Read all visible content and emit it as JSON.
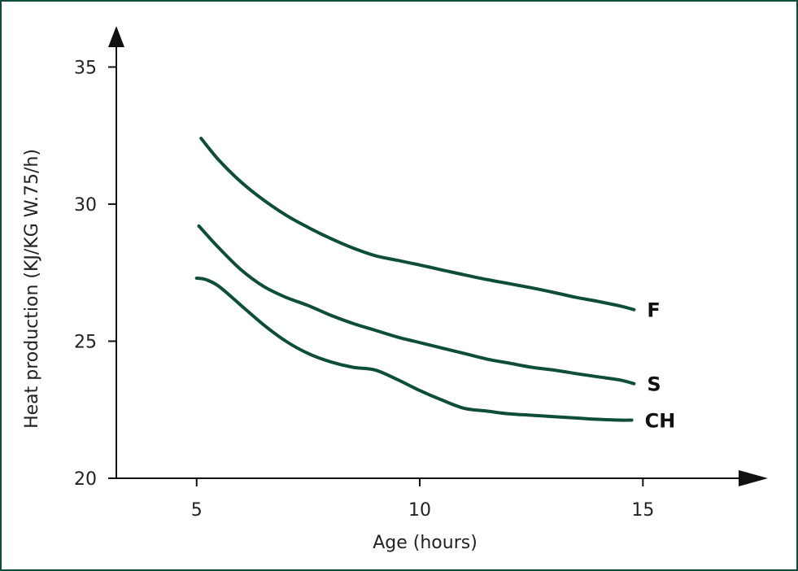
{
  "chart_data": {
    "type": "line",
    "title": "",
    "xlabel": "Age (hours)",
    "ylabel": "Heat production (KJ/KG W.75/h)",
    "xlim": [
      3.2,
      17.4
    ],
    "ylim": [
      20,
      36.2
    ],
    "x_ticks": [
      5,
      10,
      15
    ],
    "y_ticks": [
      20,
      25,
      30,
      35
    ],
    "x_tick_labels": [
      "5",
      "10",
      "15"
    ],
    "y_tick_labels": [
      "20",
      "25",
      "30",
      "35"
    ],
    "grid": false,
    "legend": "inline labels at line ends",
    "line_color": "#0e4d3c",
    "series": [
      {
        "name": "F",
        "x": [
          5.1,
          5.5,
          6.0,
          6.5,
          7.0,
          7.5,
          8.0,
          8.5,
          9.0,
          9.5,
          10.0,
          10.5,
          11.0,
          11.5,
          12.0,
          12.5,
          13.0,
          13.5,
          14.0,
          14.5,
          14.8
        ],
        "y": [
          32.4,
          31.6,
          30.8,
          30.15,
          29.6,
          29.15,
          28.75,
          28.4,
          28.12,
          27.95,
          27.78,
          27.6,
          27.42,
          27.25,
          27.1,
          26.95,
          26.78,
          26.6,
          26.45,
          26.28,
          26.15
        ]
      },
      {
        "name": "S",
        "x": [
          5.05,
          5.5,
          6.0,
          6.5,
          7.0,
          7.5,
          8.0,
          8.5,
          9.0,
          9.5,
          10.0,
          10.5,
          11.0,
          11.5,
          12.0,
          12.5,
          13.0,
          13.5,
          14.0,
          14.5,
          14.8
        ],
        "y": [
          29.2,
          28.4,
          27.6,
          27.0,
          26.6,
          26.3,
          25.95,
          25.65,
          25.4,
          25.15,
          24.95,
          24.75,
          24.55,
          24.35,
          24.2,
          24.05,
          23.95,
          23.82,
          23.7,
          23.58,
          23.45
        ]
      },
      {
        "name": "CH",
        "x": [
          5.0,
          5.2,
          5.5,
          6.0,
          6.5,
          7.0,
          7.5,
          8.0,
          8.5,
          9.0,
          9.5,
          10.0,
          10.5,
          11.0,
          11.5,
          12.0,
          12.5,
          13.0,
          13.5,
          14.0,
          14.5,
          14.75
        ],
        "y": [
          27.3,
          27.25,
          27.0,
          26.3,
          25.6,
          25.0,
          24.55,
          24.25,
          24.05,
          23.95,
          23.6,
          23.2,
          22.85,
          22.55,
          22.45,
          22.35,
          22.3,
          22.25,
          22.2,
          22.15,
          22.12,
          22.12
        ]
      }
    ]
  }
}
